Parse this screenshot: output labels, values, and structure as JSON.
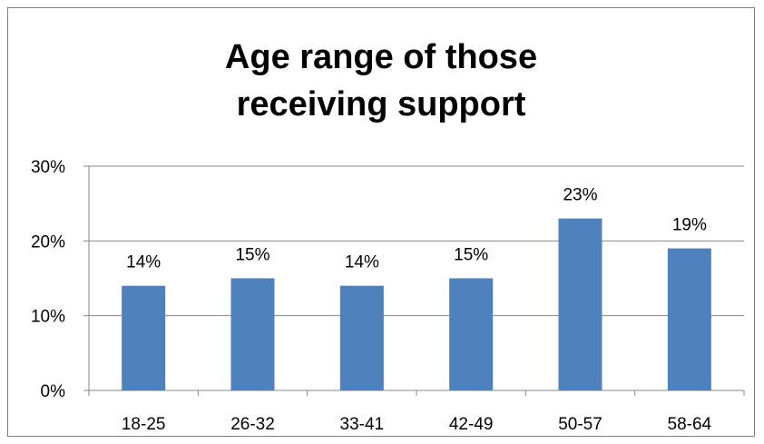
{
  "chart_data": {
    "type": "bar",
    "title_lines": [
      "Age range of those",
      "receiving support"
    ],
    "categories": [
      "18-25",
      "26-32",
      "33-41",
      "42-49",
      "50-57",
      "58-64"
    ],
    "values": [
      14,
      15,
      14,
      15,
      23,
      19
    ],
    "data_labels": [
      "14%",
      "15%",
      "14%",
      "15%",
      "23%",
      "19%"
    ],
    "ylim": [
      0,
      30
    ],
    "y_ticks": [
      0,
      10,
      20,
      30
    ],
    "y_tick_labels": [
      "0%",
      "10%",
      "20%",
      "30%"
    ],
    "xlabel": "",
    "ylabel": "",
    "legend": "none",
    "grid": true,
    "bar_color": "#4f81bd",
    "grid_color": "#878787",
    "axis_color": "#878787"
  }
}
